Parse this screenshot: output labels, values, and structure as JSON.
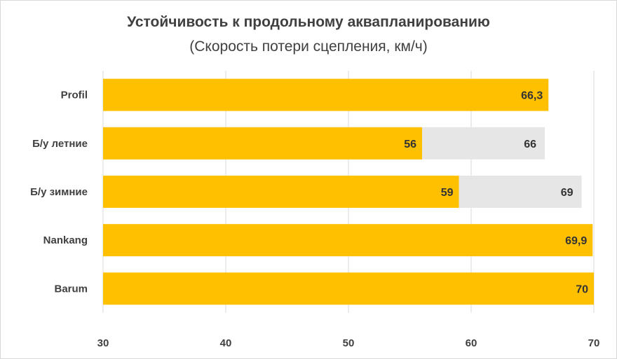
{
  "chart_data": {
    "type": "bar",
    "orientation": "horizontal",
    "title": "Устойчивость к продольному аквапланированию",
    "subtitle": "(Скорость потери сцепления, км/ч)",
    "categories": [
      "Profil",
      "Б/у летние",
      "Б/у зимние",
      "Nankang",
      "Barum"
    ],
    "series": [
      {
        "values": [
          66.3,
          56,
          59,
          69.9,
          70
        ],
        "labels": [
          "66,3",
          "56",
          "59",
          "69,9",
          "70"
        ],
        "color": "#FFC000"
      },
      {
        "values": [
          null,
          66,
          69,
          null,
          null
        ],
        "labels": [
          "",
          "66",
          "69",
          "",
          ""
        ],
        "color": "#E7E6E6"
      }
    ],
    "xlim": [
      30,
      70
    ],
    "xticks": [
      "30",
      "40",
      "50",
      "60",
      "70"
    ],
    "grid": true,
    "legend": "none"
  }
}
